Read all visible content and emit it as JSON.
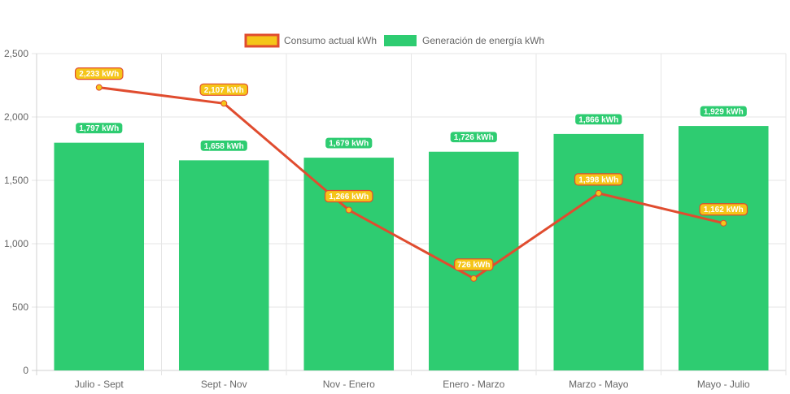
{
  "chart_data": {
    "type": "bar",
    "categories": [
      "Julio - Sept",
      "Sept - Nov",
      "Nov - Enero",
      "Enero - Marzo",
      "Marzo - Mayo",
      "Mayo - Julio"
    ],
    "ylim": [
      0,
      2500
    ],
    "yticks": [
      0,
      500,
      1000,
      1500,
      2000,
      2500
    ],
    "ytick_labels": [
      "0",
      "500",
      "1,000",
      "1,500",
      "2,000",
      "2,500"
    ],
    "grid": true,
    "legend_position": "top-center",
    "series": [
      {
        "name": "Consumo actual kWh",
        "type": "line",
        "values": [
          2233,
          2107,
          1266,
          726,
          1398,
          1162
        ],
        "labels": [
          "2,233 kWh",
          "2,107 kWh",
          "1,266 kWh",
          "726 kWh",
          "1,398 kWh",
          "1,162 kWh"
        ],
        "line_color": "#e04c2f",
        "fill_color": "#f5c518"
      },
      {
        "name": "Generación de energía kWh",
        "type": "bar",
        "values": [
          1797,
          1658,
          1679,
          1726,
          1866,
          1929
        ],
        "labels": [
          "1,797 kWh",
          "1,658 kWh",
          "1,679 kWh",
          "1,726 kWh",
          "1,866 kWh",
          "1,929 kWh"
        ],
        "color": "#2ecc71"
      }
    ]
  }
}
